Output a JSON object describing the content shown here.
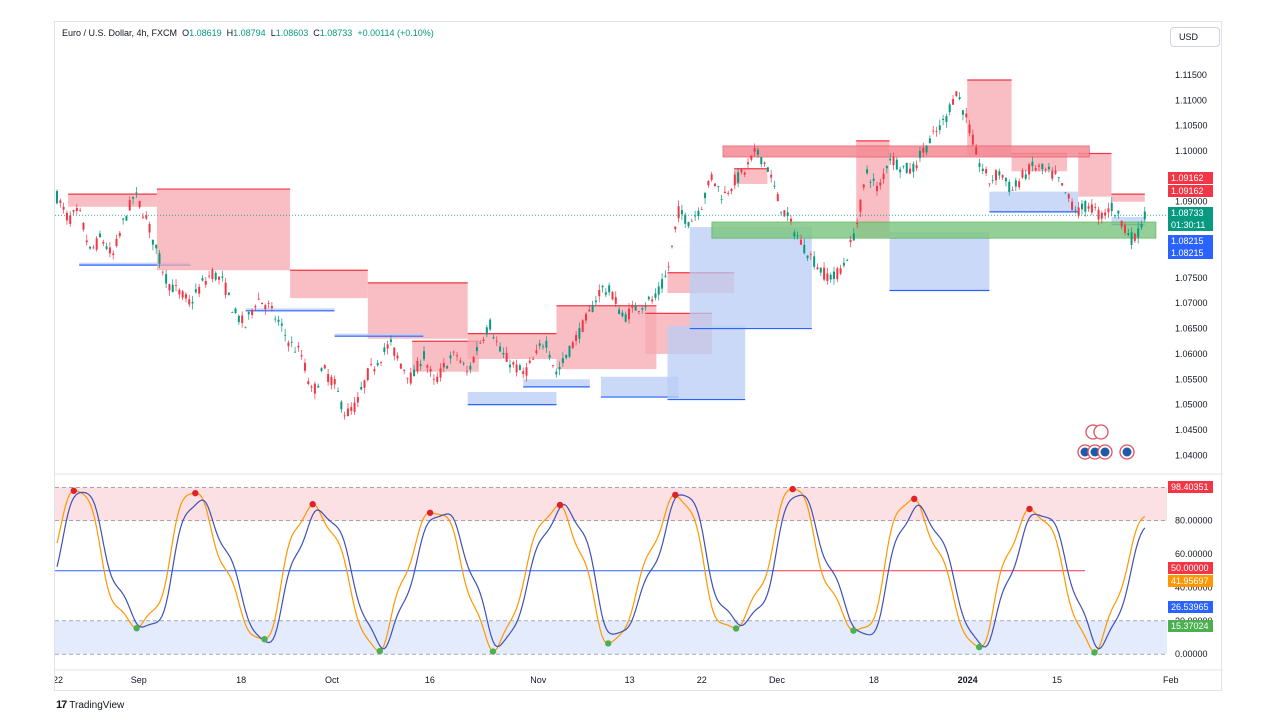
{
  "legend": {
    "symbol": "Euro / U.S. Dollar, 4h, FXCM",
    "open_label": "O",
    "open": "1.08619",
    "high_label": "H",
    "high": "1.08794",
    "low_label": "L",
    "low": "1.08603",
    "close_label": "C",
    "close": "1.08733",
    "change": "+0.00114 (+0.10%)"
  },
  "currency": "USD",
  "branding": {
    "logo_text": "TradingView"
  },
  "colors": {
    "up": "#089981",
    "down": "#f23645",
    "supply": "#f7a8b0",
    "demand": "#b8ccf6",
    "supply_line": "#f23645",
    "demand_line": "#2962ff",
    "green_zone": "#81c784",
    "osc_k": "#ff9800",
    "osc_d": "#3f51b5"
  },
  "price_tags": {
    "resistance_1": "1.09162",
    "resistance_2": "1.09162",
    "last": "1.08733",
    "countdown": "01:30:11",
    "support_1": "1.08215",
    "support_2": "1.08215",
    "osc_overbought": "98.40351",
    "osc_mid": "50.00000",
    "osc_k": "41.95697",
    "osc_d": "26.53965",
    "osc_oversold": "15.37024"
  },
  "chart_data": [
    {
      "type": "candlestick",
      "title": "Euro / U.S. Dollar, 4h, FXCM",
      "y_ticks": [
        "1.11500",
        "1.11000",
        "1.10500",
        "1.10000",
        "1.09500",
        "1.09000",
        "1.08500",
        "1.08000",
        "1.07500",
        "1.07000",
        "1.06500",
        "1.06000",
        "1.05500",
        "1.05000",
        "1.04500",
        "1.04000"
      ],
      "ylim": [
        1.0385,
        1.1205
      ],
      "x_ticks": [
        "22",
        "Sep",
        "18",
        "Oct",
        "16",
        "Nov",
        "13",
        "22",
        "Dec",
        "18",
        "2024",
        "15",
        "Feb"
      ],
      "x_tick_pos": [
        0,
        0.07,
        0.165,
        0.245,
        0.335,
        0.43,
        0.515,
        0.58,
        0.645,
        0.735,
        0.815,
        0.9,
        1.0
      ],
      "close_path": [
        [
          0.0,
          1.091
        ],
        [
          0.01,
          1.0865
        ],
        [
          0.02,
          1.088
        ],
        [
          0.03,
          1.08
        ],
        [
          0.04,
          1.083
        ],
        [
          0.05,
          1.079
        ],
        [
          0.06,
          1.086
        ],
        [
          0.07,
          1.0915
        ],
        [
          0.08,
          1.087
        ],
        [
          0.09,
          1.08
        ],
        [
          0.1,
          1.074
        ],
        [
          0.11,
          1.072
        ],
        [
          0.12,
          1.07
        ],
        [
          0.13,
          1.0735
        ],
        [
          0.14,
          1.076
        ],
        [
          0.15,
          1.074
        ],
        [
          0.16,
          1.068
        ],
        [
          0.17,
          1.0655
        ],
        [
          0.18,
          1.071
        ],
        [
          0.19,
          1.0695
        ],
        [
          0.2,
          1.066
        ],
        [
          0.21,
          1.062
        ],
        [
          0.22,
          1.06
        ],
        [
          0.23,
          1.052
        ],
        [
          0.24,
          1.057
        ],
        [
          0.25,
          1.054
        ],
        [
          0.26,
          1.048
        ],
        [
          0.27,
          1.05
        ],
        [
          0.28,
          1.056
        ],
        [
          0.29,
          1.059
        ],
        [
          0.3,
          1.062
        ],
        [
          0.31,
          1.058
        ],
        [
          0.32,
          1.055
        ],
        [
          0.33,
          1.06
        ],
        [
          0.34,
          1.054
        ],
        [
          0.35,
          1.058
        ],
        [
          0.36,
          1.06
        ],
        [
          0.37,
          1.056
        ],
        [
          0.38,
          1.062
        ],
        [
          0.39,
          1.066
        ],
        [
          0.4,
          1.06
        ],
        [
          0.41,
          1.058
        ],
        [
          0.42,
          1.056
        ],
        [
          0.43,
          1.059
        ],
        [
          0.44,
          1.063
        ],
        [
          0.45,
          1.056
        ],
        [
          0.46,
          1.06
        ],
        [
          0.47,
          1.064
        ],
        [
          0.48,
          1.068
        ],
        [
          0.49,
          1.073
        ],
        [
          0.5,
          1.072
        ],
        [
          0.51,
          1.067
        ],
        [
          0.52,
          1.069
        ],
        [
          0.53,
          1.07
        ],
        [
          0.54,
          1.071
        ],
        [
          0.55,
          1.076
        ],
        [
          0.56,
          1.088
        ],
        [
          0.57,
          1.086
        ],
        [
          0.58,
          1.089
        ],
        [
          0.59,
          1.095
        ],
        [
          0.6,
          1.091
        ],
        [
          0.61,
          1.094
        ],
        [
          0.62,
          1.096
        ],
        [
          0.63,
          1.1
        ],
        [
          0.64,
          1.097
        ],
        [
          0.65,
          1.09
        ],
        [
          0.66,
          1.086
        ],
        [
          0.67,
          1.082
        ],
        [
          0.68,
          1.079
        ],
        [
          0.69,
          1.076
        ],
        [
          0.7,
          1.075
        ],
        [
          0.71,
          1.078
        ],
        [
          0.72,
          1.085
        ],
        [
          0.73,
          1.096
        ],
        [
          0.74,
          1.092
        ],
        [
          0.75,
          1.099
        ],
        [
          0.76,
          1.097
        ],
        [
          0.77,
          1.096
        ],
        [
          0.78,
          1.1
        ],
        [
          0.79,
          1.103
        ],
        [
          0.8,
          1.106
        ],
        [
          0.81,
          1.112
        ],
        [
          0.82,
          1.106
        ],
        [
          0.83,
          1.098
        ],
        [
          0.84,
          1.094
        ],
        [
          0.85,
          1.096
        ],
        [
          0.86,
          1.092
        ],
        [
          0.87,
          1.095
        ],
        [
          0.88,
          1.097
        ],
        [
          0.89,
          1.096
        ],
        [
          0.9,
          1.095
        ],
        [
          0.91,
          1.091
        ],
        [
          0.92,
          1.088
        ],
        [
          0.93,
          1.0895
        ],
        [
          0.94,
          1.087
        ],
        [
          0.95,
          1.089
        ],
        [
          0.96,
          1.086
        ],
        [
          0.97,
          1.082
        ],
        [
          0.98,
          1.0873
        ]
      ],
      "series": [
        {
          "name": "",
          "values": "close_path"
        }
      ],
      "zones": [
        {
          "kind": "supply",
          "x0": 0.01,
          "x1": 0.09,
          "y0": 1.0915,
          "y1": 1.089
        },
        {
          "kind": "demand",
          "x0": 0.02,
          "x1": 0.12,
          "y0": 1.078,
          "y1": 1.0775
        },
        {
          "kind": "supply",
          "x0": 0.09,
          "x1": 0.21,
          "y0": 1.0925,
          "y1": 1.0765
        },
        {
          "kind": "demand",
          "x0": 0.17,
          "x1": 0.25,
          "y0": 1.069,
          "y1": 1.0685
        },
        {
          "kind": "supply",
          "x0": 0.21,
          "x1": 0.28,
          "y0": 1.0765,
          "y1": 1.071
        },
        {
          "kind": "supply",
          "x0": 0.28,
          "x1": 0.37,
          "y0": 1.074,
          "y1": 1.063
        },
        {
          "kind": "demand",
          "x0": 0.25,
          "x1": 0.33,
          "y0": 1.064,
          "y1": 1.0635
        },
        {
          "kind": "supply",
          "x0": 0.32,
          "x1": 0.38,
          "y0": 1.0625,
          "y1": 1.0565
        },
        {
          "kind": "demand",
          "x0": 0.37,
          "x1": 0.45,
          "y0": 1.0525,
          "y1": 1.05
        },
        {
          "kind": "demand",
          "x0": 0.42,
          "x1": 0.48,
          "y0": 1.055,
          "y1": 1.0535
        },
        {
          "kind": "supply",
          "x0": 0.37,
          "x1": 0.45,
          "y0": 1.064,
          "y1": 1.059
        },
        {
          "kind": "supply",
          "x0": 0.45,
          "x1": 0.54,
          "y0": 1.0695,
          "y1": 1.057
        },
        {
          "kind": "demand",
          "x0": 0.49,
          "x1": 0.56,
          "y0": 1.0555,
          "y1": 1.0515
        },
        {
          "kind": "supply",
          "x0": 0.53,
          "x1": 0.59,
          "y0": 1.068,
          "y1": 1.06
        },
        {
          "kind": "demand",
          "x0": 0.55,
          "x1": 0.62,
          "y0": 1.0655,
          "y1": 1.051
        },
        {
          "kind": "supply",
          "x0": 0.55,
          "x1": 0.61,
          "y0": 1.076,
          "y1": 1.072
        },
        {
          "kind": "demand",
          "x0": 0.57,
          "x1": 0.68,
          "y0": 1.085,
          "y1": 1.065
        },
        {
          "kind": "supply",
          "x0": 0.61,
          "x1": 0.64,
          "y0": 1.0965,
          "y1": 1.0935
        },
        {
          "kind": "supply",
          "x0": 0.72,
          "x1": 0.75,
          "y0": 1.102,
          "y1": 1.083
        },
        {
          "kind": "demand",
          "x0": 0.75,
          "x1": 0.84,
          "y0": 1.084,
          "y1": 1.0725
        },
        {
          "kind": "supply",
          "x0": 0.82,
          "x1": 0.86,
          "y0": 1.114,
          "y1": 1.099
        },
        {
          "kind": "supply",
          "x0": 0.86,
          "x1": 0.91,
          "y0": 1.0995,
          "y1": 1.096
        },
        {
          "kind": "demand",
          "x0": 0.84,
          "x1": 0.92,
          "y0": 1.092,
          "y1": 1.088
        },
        {
          "kind": "supply",
          "x0": 0.92,
          "x1": 0.95,
          "y0": 1.0995,
          "y1": 1.091
        },
        {
          "kind": "supply",
          "x0": 0.95,
          "x1": 0.98,
          "y0": 1.0915,
          "y1": 1.09
        },
        {
          "kind": "demand",
          "x0": 0.95,
          "x1": 0.98,
          "y0": 1.087,
          "y1": 1.0855
        }
      ],
      "key_levels": [
        {
          "kind": "resistance",
          "x0": 0.6,
          "x1": 0.93,
          "y0": 1.101,
          "y1": 1.1
        },
        {
          "kind": "support",
          "x0": 0.59,
          "x1": 0.99,
          "y0": 1.086,
          "y1": 1.084
        }
      ]
    },
    {
      "type": "line",
      "title": "",
      "y_ticks": [
        "80.00000",
        "60.00000",
        "40.00000",
        "20.00000",
        "0.00000"
      ],
      "ylim": [
        -0.5,
        102
      ],
      "levels": {
        "overbought": 80,
        "mid": 50,
        "oversold": 20
      },
      "series": [
        {
          "name": "",
          "values": "generated_oscillator_k"
        },
        {
          "name": "",
          "values": "generated_oscillator_d"
        }
      ],
      "last_values": {
        "k": 41.95697,
        "d": 26.53965
      }
    }
  ]
}
